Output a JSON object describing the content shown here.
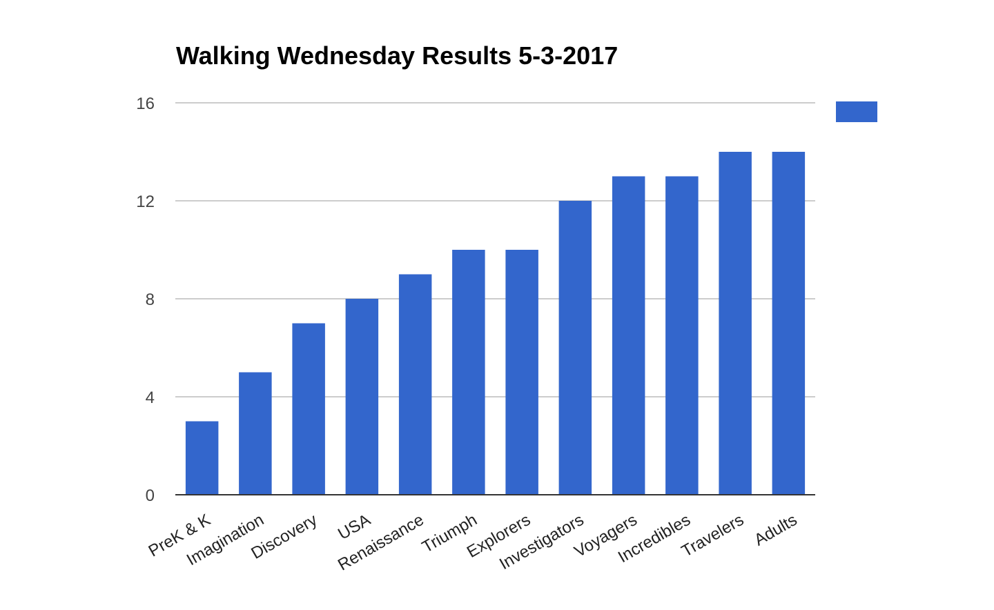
{
  "chart_data": {
    "type": "bar",
    "title": "Walking Wednesday Results 5-3-2017",
    "xlabel": "",
    "ylabel": "",
    "categories": [
      "PreK & K",
      "Imagination",
      "Discovery",
      "USA",
      "Renaissance",
      "Triumph",
      "Explorers",
      "Investigators",
      "Voyagers",
      "Incredibles",
      "Travelers",
      "Adults"
    ],
    "values": [
      3,
      5,
      7,
      8,
      9,
      10,
      10,
      12,
      13,
      13,
      14,
      14
    ],
    "ylim": [
      0,
      16
    ],
    "yticks": [
      0,
      4,
      8,
      12,
      16
    ],
    "grid": true,
    "legend": {
      "placement": "top-right",
      "label": ""
    },
    "colors": {
      "bar": "#3366cc",
      "grid": "#cccccc",
      "axis": "#333333"
    }
  }
}
